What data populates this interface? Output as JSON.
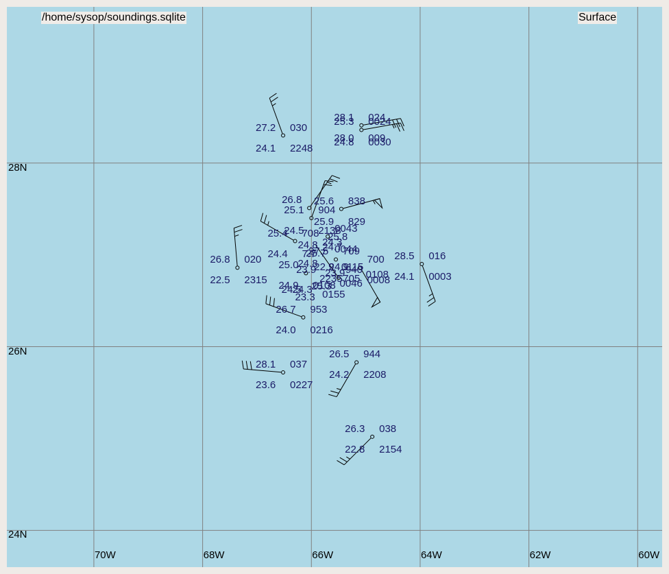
{
  "header": {
    "file_label": "/home/sysop/soundings.sqlite",
    "level_label": "Surface"
  },
  "colors": {
    "map_bg": "#add8e6",
    "grid": "#808080",
    "text": "#1a1a66",
    "frame": "#efebe7"
  },
  "axes": {
    "lat_labels": [
      "28N",
      "26N",
      "24N"
    ],
    "lon_labels": [
      "70W",
      "68W",
      "66W",
      "64W",
      "62W",
      "60W"
    ]
  },
  "stations": [
    {
      "id": "s1",
      "lon": -66.52,
      "lat": 28.3,
      "temp": "27.2",
      "pres": "030",
      "dew": "24.1",
      "time": "2248",
      "dir": 340,
      "spd": 25
    },
    {
      "id": "s2",
      "lon": -65.08,
      "lat": 28.41,
      "temp": "28.1",
      "pres": "024",
      "dew": "28.0",
      "time": "009",
      "dir": 80,
      "spd": 30
    },
    {
      "id": "s3",
      "lon": -65.08,
      "lat": 28.36,
      "temp": "25.3",
      "pres": "0024",
      "dew": "24.8",
      "time": "0030",
      "dir": 80,
      "spd": 25
    },
    {
      "id": "s4",
      "lon": -66.04,
      "lat": 27.51,
      "temp": "26.8",
      "pres": "",
      "dew": "",
      "time": "",
      "dir": 35,
      "spd": 25
    },
    {
      "id": "s5",
      "lon": -65.45,
      "lat": 27.5,
      "temp": "25.6",
      "pres": "838",
      "dew": "25.9",
      "time": "829",
      "dir": 75,
      "spd": 55
    },
    {
      "id": "s6",
      "lon": -66.0,
      "lat": 27.4,
      "temp": "25.1",
      "pres": "904",
      "dew": "24.5",
      "time": "2138",
      "dir": 20,
      "spd": 20
    },
    {
      "id": "s7",
      "lon": -65.7,
      "lat": 27.2,
      "temp": "",
      "pres": "0043",
      "dew": "",
      "time": "0044",
      "dir": 0,
      "spd": 0
    },
    {
      "id": "s8",
      "lon": -66.3,
      "lat": 27.15,
      "temp": "25.4",
      "pres": "708",
      "dew": "24.4",
      "time": "7.7",
      "dir": 300,
      "spd": 25
    },
    {
      "id": "s9",
      "lon": -65.55,
      "lat": 26.95,
      "temp": "27.5",
      "pres": "709",
      "dew": "",
      "time": "",
      "dir": 0,
      "spd": 0
    },
    {
      "id": "s10",
      "lon": -67.36,
      "lat": 26.86,
      "temp": "26.8",
      "pres": "020",
      "dew": "22.5",
      "time": "2315",
      "dir": 355,
      "spd": 25
    },
    {
      "id": "s11",
      "lon": -63.97,
      "lat": 26.9,
      "temp": "28.5",
      "pres": "016",
      "dew": "24.1",
      "time": "0003",
      "dir": 160,
      "spd": 25
    },
    {
      "id": "s12",
      "lon": -65.1,
      "lat": 26.86,
      "temp": "",
      "pres": "700",
      "dew": "",
      "time": "0008",
      "dir": 150,
      "spd": 50
    },
    {
      "id": "s13",
      "lon": -66.1,
      "lat": 26.8,
      "temp": "25.0",
      "pres": "",
      "dew": "24.9",
      "time": "0108",
      "dir": 0,
      "spd": 0
    },
    {
      "id": "s14",
      "lon": -65.5,
      "lat": 26.75,
      "temp": "",
      "pres": "940",
      "dew": "",
      "time": "",
      "dir": 325,
      "spd": 0
    },
    {
      "id": "s15",
      "lon": -66.15,
      "lat": 26.32,
      "temp": "26.7",
      "pres": "953",
      "dew": "24.0",
      "time": "0216",
      "dir": 290,
      "spd": 30
    },
    {
      "id": "s16",
      "lon": -65.17,
      "lat": 25.83,
      "temp": "26.5",
      "pres": "944",
      "dew": "24.2",
      "time": "2208",
      "dir": 210,
      "spd": 25
    },
    {
      "id": "s17",
      "lon": -66.52,
      "lat": 25.72,
      "temp": "28.1",
      "pres": "037",
      "dew": "23.6",
      "time": "0227",
      "dir": 275,
      "spd": 30
    },
    {
      "id": "s18",
      "lon": -64.88,
      "lat": 25.02,
      "temp": "26.3",
      "pres": "038",
      "dew": "22.8",
      "time": "2154",
      "dir": 225,
      "spd": 25
    }
  ],
  "cluster_text": [
    {
      "text": "24.8",
      "lon": -66.25,
      "lat": 27.17
    },
    {
      "text": "25.7",
      "lon": -66.1,
      "lat": 27.08
    },
    {
      "text": "24.7",
      "lon": -65.8,
      "lat": 27.15
    },
    {
      "text": "25.8",
      "lon": -65.7,
      "lat": 27.26
    },
    {
      "text": "24.3",
      "lon": -65.8,
      "lat": 27.2
    },
    {
      "text": "24.8",
      "lon": -66.25,
      "lat": 26.97
    },
    {
      "text": "23.9",
      "lon": -66.28,
      "lat": 26.9
    },
    {
      "text": "22.9",
      "lon": -65.95,
      "lat": 26.93
    },
    {
      "text": "24.9",
      "lon": -65.68,
      "lat": 26.93
    },
    {
      "text": "23.9",
      "lon": -65.75,
      "lat": 26.86
    },
    {
      "text": "2235",
      "lon": -65.85,
      "lat": 26.8
    },
    {
      "text": "0115",
      "lon": -65.45,
      "lat": 26.93
    },
    {
      "text": "705",
      "lon": -65.42,
      "lat": 26.8
    },
    {
      "text": "0108",
      "lon": -65.0,
      "lat": 26.85
    },
    {
      "text": "24.5",
      "lon": -66.55,
      "lat": 26.68
    },
    {
      "text": "24.3",
      "lon": -66.35,
      "lat": 26.68
    },
    {
      "text": "25.3",
      "lon": -66.0,
      "lat": 26.72
    },
    {
      "text": "23.3",
      "lon": -66.3,
      "lat": 26.6
    },
    {
      "text": "0155",
      "lon": -65.8,
      "lat": 26.63
    },
    {
      "text": "0046",
      "lon": -65.48,
      "lat": 26.75
    }
  ],
  "map_view": {
    "lon_min": -71.6,
    "lon_max": -59.55,
    "lat_min": 23.6,
    "lat_max": 29.7
  }
}
